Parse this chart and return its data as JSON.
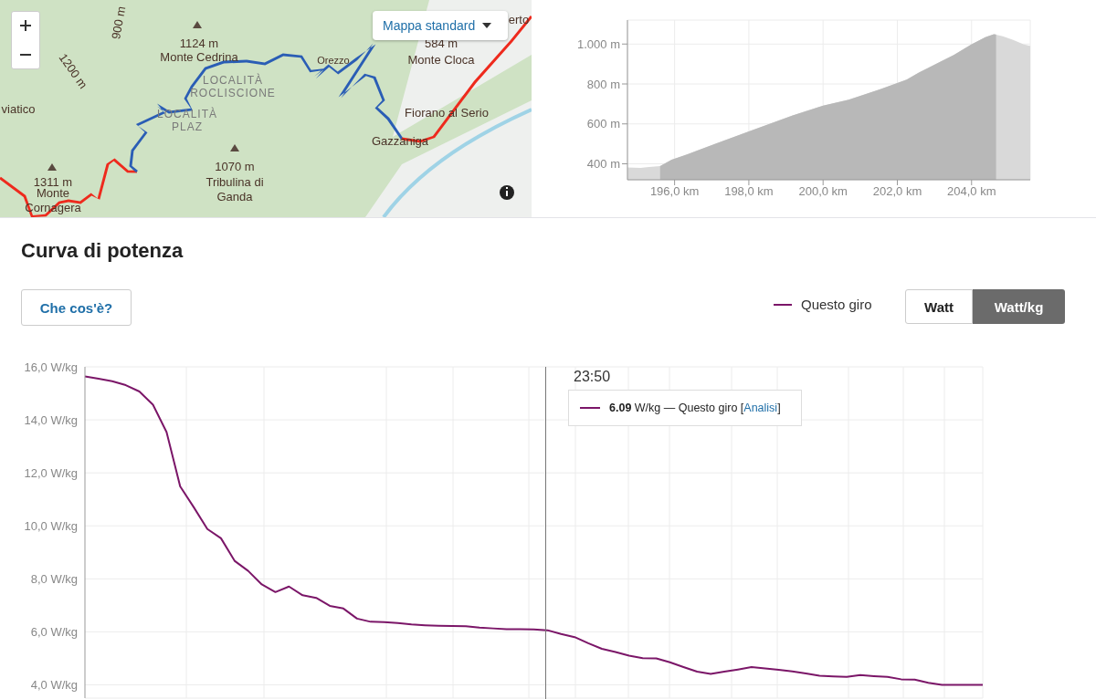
{
  "chart_data": [
    {
      "type": "other",
      "annotations": [
        "Mappa standard",
        "900 m",
        "1124 m",
        "Monte Cedrina",
        "1200 m",
        "584 m",
        "Monte Cloca",
        "Orezzo",
        "LOCALITÀ ROCLISCIONE",
        "viatico",
        "LOCALITÀ PLAZ",
        "Fiorano al Serio",
        "Gazzaniga",
        "1070 m",
        "Tribulina di Ganda",
        "1311 m",
        "Monte Cornagera",
        "erto"
      ]
    },
    {
      "type": "area",
      "xlim": [
        194.73,
        205.58
      ],
      "ylim": [
        320,
        1120
      ],
      "xticks": [
        {
          "value": 196,
          "label": "196,0 km"
        },
        {
          "value": 198,
          "label": "198,0 km"
        },
        {
          "value": 200,
          "label": "200,0 km"
        },
        {
          "value": 202,
          "label": "202,0 km"
        },
        {
          "value": 204,
          "label": "204,0 km"
        }
      ],
      "yticks": [
        {
          "value": 400,
          "label": "400 m"
        },
        {
          "value": 600,
          "label": "600 m"
        },
        {
          "value": 800,
          "label": "800 m"
        },
        {
          "value": 1000,
          "label": "1.000 m"
        }
      ],
      "grid": true,
      "series": [
        {
          "color": "#d9d9d9",
          "x": [
            194.73,
            195.08,
            195.31,
            195.61,
            195.92,
            196.35,
            197.1,
            198.0,
            199.18,
            200.0,
            200.69,
            201.54,
            202.25,
            202.58,
            203.14,
            203.52,
            203.99,
            204.37,
            204.6,
            204.84,
            205.12,
            205.41,
            205.58
          ],
          "values": [
            382,
            379,
            384,
            389,
            421,
            448,
            501,
            562,
            642,
            691,
            721,
            774,
            822,
            857,
            910,
            945,
            998,
            1034,
            1049,
            1039,
            1021,
            998,
            991
          ]
        },
        {
          "color": "#b8b8b8",
          "x": [
            195.61,
            195.92,
            196.35,
            197.1,
            198.0,
            199.18,
            200.0,
            200.69,
            201.54,
            202.25,
            202.58,
            203.14,
            203.52,
            203.99,
            204.37,
            204.6,
            204.66
          ],
          "values": [
            389,
            421,
            448,
            501,
            562,
            642,
            691,
            721,
            774,
            822,
            857,
            910,
            945,
            998,
            1034,
            1049,
            1048
          ]
        }
      ]
    },
    {
      "type": "line",
      "title": "Curva di potenza",
      "categories": [
        null,
        null,
        null,
        null,
        null,
        null,
        null,
        null,
        null,
        null,
        null,
        null,
        null,
        null,
        null,
        null,
        null,
        null,
        null,
        null,
        null,
        null,
        null,
        null,
        null,
        null,
        null,
        null,
        null,
        null,
        null,
        null,
        null,
        null,
        null,
        null,
        null,
        null,
        null,
        null,
        null,
        null,
        null,
        null,
        null,
        null,
        null,
        null,
        null,
        null,
        null,
        null,
        null,
        null,
        null,
        null,
        null,
        null,
        null,
        null,
        null,
        null,
        null,
        null,
        null,
        null,
        null
      ],
      "series": [
        {
          "name": "Questo giro",
          "color": "#7b1668",
          "values": [
            15.64,
            15.55,
            15.46,
            15.31,
            15.07,
            14.57,
            13.54,
            11.49,
            10.7,
            9.88,
            9.53,
            8.68,
            8.3,
            7.79,
            7.5,
            7.71,
            7.38,
            7.28,
            6.98,
            6.88,
            6.5,
            6.38,
            6.37,
            6.33,
            6.28,
            6.25,
            6.23,
            6.22,
            6.21,
            6.16,
            6.13,
            6.1,
            6.1,
            6.09,
            6.06,
            5.92,
            5.8,
            5.57,
            5.36,
            5.24,
            5.1,
            5.01,
            5.0,
            4.85,
            4.67,
            4.5,
            4.41,
            4.5,
            4.58,
            4.67,
            4.62,
            4.57,
            4.51,
            4.43,
            4.34,
            4.32,
            4.3,
            4.37,
            4.33,
            4.3,
            4.21,
            4.2,
            4.08,
            4.0,
            4.0,
            4.0,
            4.0
          ]
        }
      ],
      "ylim": [
        3.5,
        16
      ],
      "yticks": [
        {
          "value": 4,
          "label": "4,0 W/kg"
        },
        {
          "value": 6,
          "label": "6,0 W/kg"
        },
        {
          "value": 8,
          "label": "8,0 W/kg"
        },
        {
          "value": 10,
          "label": "10,0 W/kg"
        },
        {
          "value": 12,
          "label": "12,0 W/kg"
        },
        {
          "value": 14,
          "label": "14,0 W/kg"
        },
        {
          "value": 16,
          "label": "16,0 W/kg"
        }
      ],
      "grid": true,
      "legend": "top right",
      "tick_labels": "y",
      "annotations": [
        "23:50",
        "6.09 W/kg — Questo giro [Analisi]",
        "Che cos'è?",
        "Watt",
        "Watt/kg"
      ]
    }
  ]
}
